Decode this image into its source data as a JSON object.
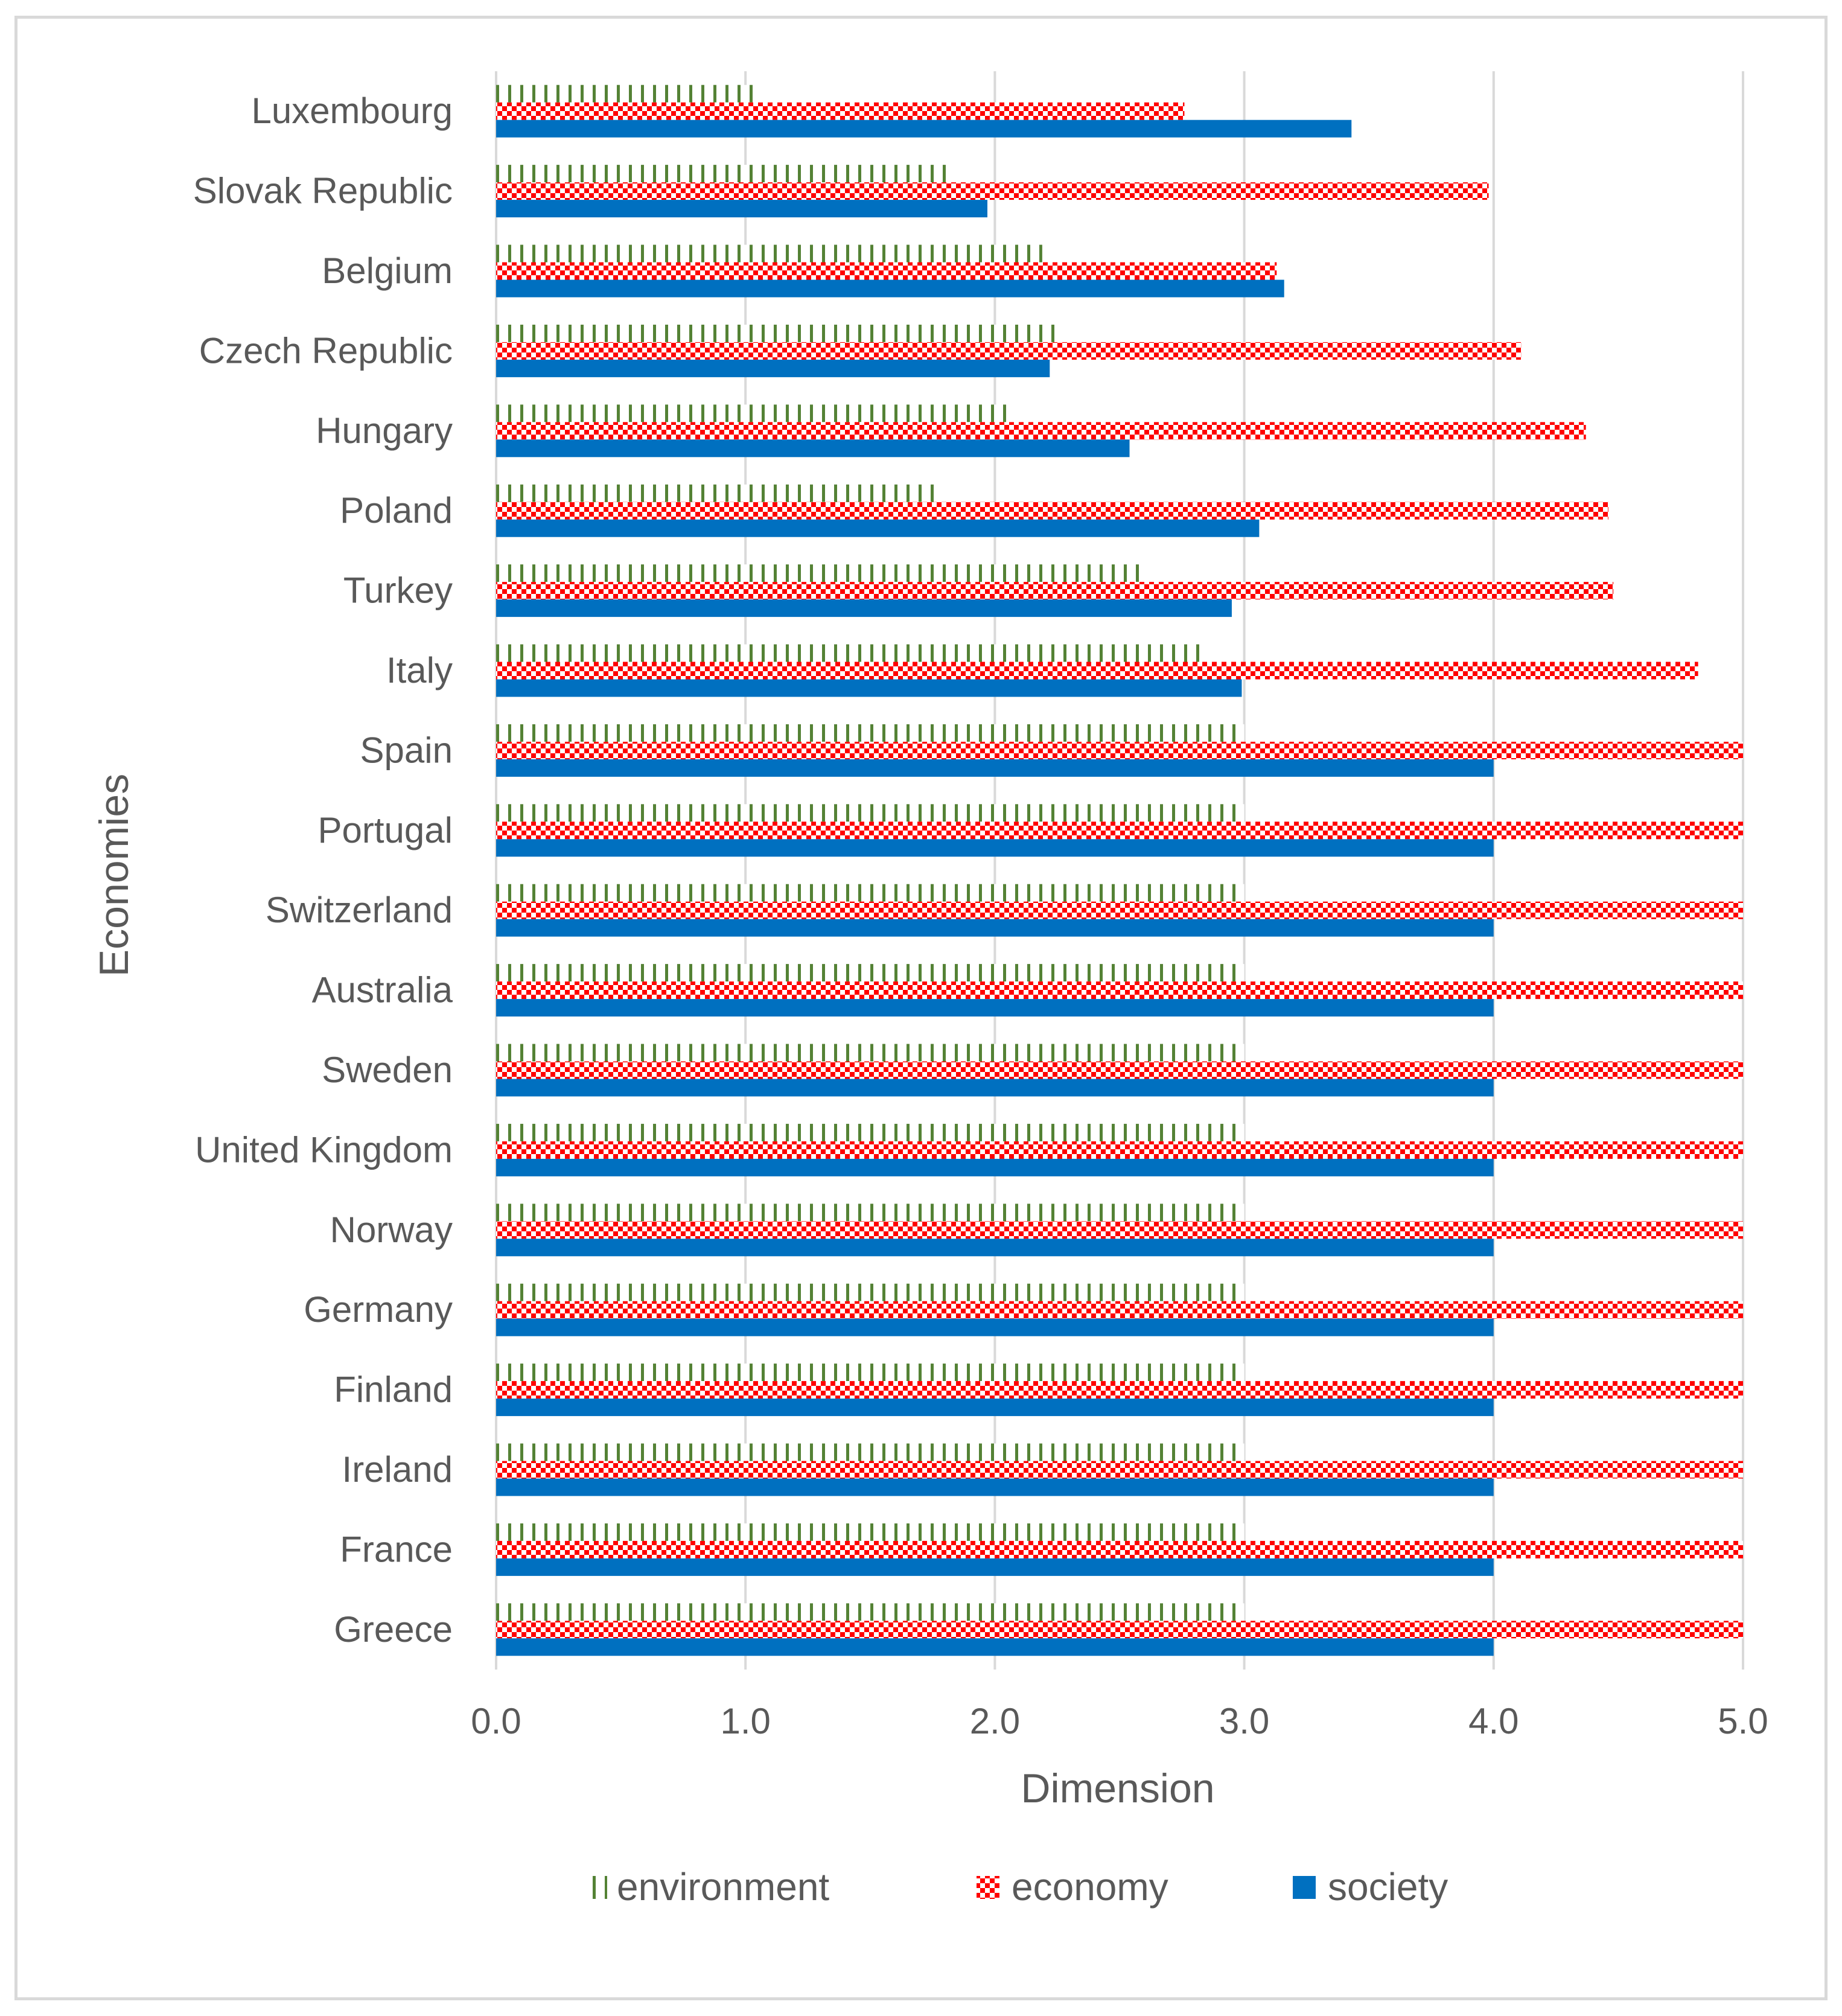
{
  "chart_data": {
    "type": "bar",
    "orientation": "horizontal",
    "title": "",
    "xlabel": "Dimension",
    "ylabel": "Economies",
    "xlim": [
      0,
      5
    ],
    "x_ticks": [
      "0.0",
      "1.0",
      "2.0",
      "3.0",
      "4.0",
      "5.0"
    ],
    "grid": "vertical",
    "legend_position": "bottom",
    "categories": [
      "Luxembourg",
      "Slovak Republic",
      "Belgium",
      "Czech Republic",
      "Hungary",
      "Poland",
      "Turkey",
      "Italy",
      "Spain",
      "Portugal",
      "Switzerland",
      "Australia",
      "Sweden",
      "United Kingdom",
      "Norway",
      "Germany",
      "Finland",
      "Ireland",
      "France",
      "Greece"
    ],
    "series": [
      {
        "name": "environment",
        "color": "#548235",
        "pattern": "vertical-stripes",
        "values": [
          1.03,
          1.82,
          2.19,
          2.25,
          2.06,
          1.77,
          2.61,
          2.85,
          3.0,
          3.0,
          3.0,
          3.0,
          3.0,
          3.0,
          3.0,
          3.0,
          3.0,
          3.0,
          3.0,
          3.0
        ]
      },
      {
        "name": "economy",
        "color": "#ff0000",
        "pattern": "checkerboard",
        "values": [
          2.76,
          3.98,
          3.13,
          4.11,
          4.37,
          4.46,
          4.48,
          4.82,
          5.0,
          5.0,
          5.0,
          5.0,
          5.0,
          5.0,
          5.0,
          5.0,
          5.0,
          5.0,
          5.0,
          5.0
        ]
      },
      {
        "name": "society",
        "color": "#0070c0",
        "pattern": "solid",
        "values": [
          3.43,
          1.97,
          3.16,
          2.22,
          2.54,
          3.06,
          2.95,
          2.99,
          4.0,
          4.0,
          4.0,
          4.0,
          4.0,
          4.0,
          4.0,
          4.0,
          4.0,
          4.0,
          4.0,
          4.0
        ]
      }
    ]
  }
}
